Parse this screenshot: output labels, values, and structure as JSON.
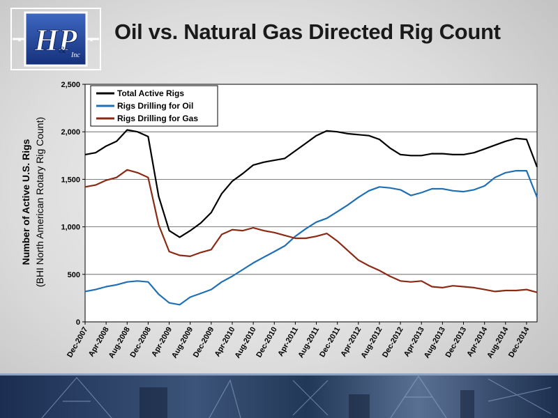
{
  "slide": {
    "title": "Oil vs. Natural Gas Directed Rig Count",
    "logo_text": "H&P Inc"
  },
  "colors": {
    "total": "#000000",
    "oil": "#1f6fb5",
    "gas": "#8b2a14",
    "logo_blue": "#1d3f8f"
  },
  "chart_data": {
    "type": "line",
    "ylabel": "Number of Active U.S. Rigs",
    "ylabel2": "(BHI North American Rotary Rig Count)",
    "ylim": [
      0,
      2500
    ],
    "y_ticks": [
      0,
      500,
      1000,
      1500,
      2000,
      2500
    ],
    "y_tick_labels": [
      "0",
      "500",
      "1,000",
      "1,500",
      "2,000",
      "2,500"
    ],
    "x_ticks": [
      "Dec-2007",
      "Apr-2008",
      "Aug-2008",
      "Dec-2008",
      "Apr-2009",
      "Aug-2009",
      "Dec-2009",
      "Apr-2010",
      "Aug-2010",
      "Dec-2010",
      "Apr-2011",
      "Aug-2011",
      "Dec-2011",
      "Apr-2012",
      "Aug-2012",
      "Dec-2012",
      "Apr-2013",
      "Aug-2013",
      "Dec-2013",
      "Apr-2014",
      "Aug-2014",
      "Dec-2014"
    ],
    "x_range": [
      "Dec-2007",
      "Feb-2015"
    ],
    "grid": "horizontal",
    "legend_position": "top-left",
    "x_months": [
      "Dec-2007",
      "Feb-2008",
      "Apr-2008",
      "Jun-2008",
      "Aug-2008",
      "Oct-2008",
      "Dec-2008",
      "Feb-2009",
      "Apr-2009",
      "Jun-2009",
      "Aug-2009",
      "Oct-2009",
      "Dec-2009",
      "Feb-2010",
      "Apr-2010",
      "Jun-2010",
      "Aug-2010",
      "Oct-2010",
      "Dec-2010",
      "Feb-2011",
      "Apr-2011",
      "Jun-2011",
      "Aug-2011",
      "Oct-2011",
      "Dec-2011",
      "Feb-2012",
      "Apr-2012",
      "Jun-2012",
      "Aug-2012",
      "Oct-2012",
      "Dec-2012",
      "Feb-2013",
      "Apr-2013",
      "Jun-2013",
      "Aug-2013",
      "Oct-2013",
      "Dec-2013",
      "Feb-2014",
      "Apr-2014",
      "Jun-2014",
      "Aug-2014",
      "Oct-2014",
      "Dec-2014",
      "Feb-2015"
    ],
    "series": [
      {
        "name": "Total Active Rigs",
        "values": [
          1760,
          1780,
          1850,
          1900,
          2020,
          2000,
          1950,
          1320,
          960,
          890,
          960,
          1040,
          1150,
          1350,
          1480,
          1560,
          1650,
          1680,
          1700,
          1720,
          1800,
          1880,
          1960,
          2010,
          2000,
          1980,
          1970,
          1960,
          1920,
          1830,
          1760,
          1750,
          1750,
          1770,
          1770,
          1760,
          1760,
          1780,
          1820,
          1860,
          1900,
          1930,
          1920,
          1630
        ]
      },
      {
        "name": "Rigs Drilling for Oil",
        "values": [
          320,
          340,
          370,
          390,
          420,
          430,
          420,
          290,
          200,
          180,
          260,
          300,
          340,
          420,
          480,
          550,
          620,
          680,
          740,
          800,
          900,
          980,
          1050,
          1090,
          1160,
          1230,
          1310,
          1380,
          1420,
          1410,
          1390,
          1330,
          1360,
          1400,
          1400,
          1380,
          1370,
          1390,
          1430,
          1520,
          1570,
          1590,
          1590,
          1310
        ]
      },
      {
        "name": "Rigs Drilling for Gas",
        "values": [
          1420,
          1440,
          1490,
          1520,
          1600,
          1570,
          1520,
          1020,
          740,
          700,
          690,
          730,
          760,
          920,
          970,
          960,
          990,
          960,
          940,
          910,
          880,
          880,
          900,
          930,
          850,
          750,
          650,
          590,
          540,
          480,
          430,
          420,
          430,
          370,
          360,
          380,
          370,
          360,
          340,
          320,
          330,
          330,
          340,
          310
        ]
      }
    ]
  }
}
